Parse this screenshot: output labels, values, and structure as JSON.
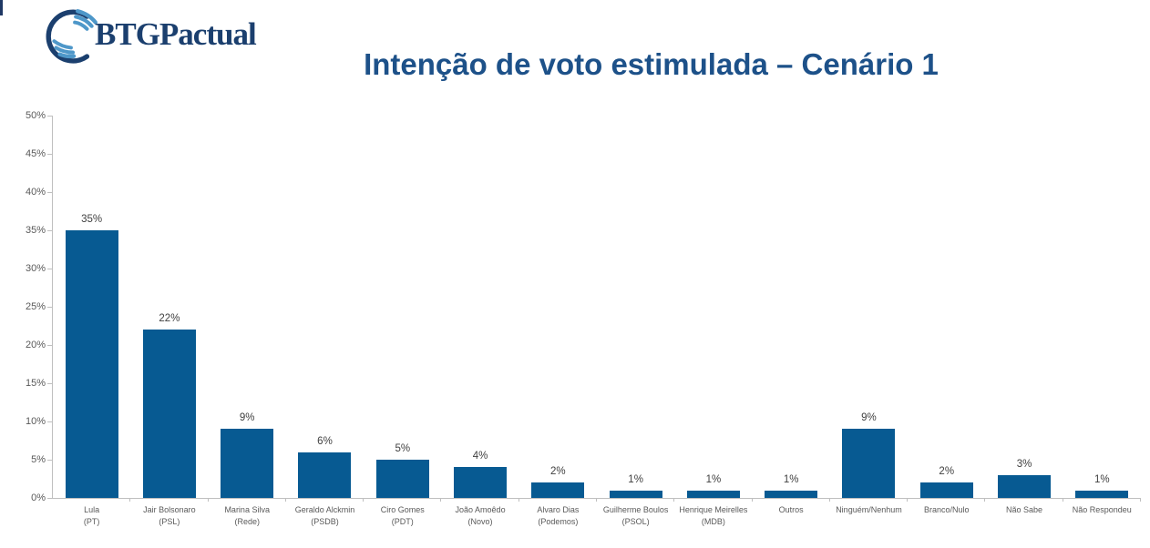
{
  "header": {
    "logo_text": "BTGPactual",
    "title": "Intenção de voto estimulada – Cenário 1"
  },
  "colors": {
    "bar": "#075A92",
    "title": "#1D5189",
    "logo_navy": "#1B3F6E",
    "logo_stripe": "#4E97C9",
    "axis": "#BFBFBF",
    "value_label": "#404040",
    "tick_label": "#595959"
  },
  "chart_data": {
    "type": "bar",
    "title": "Intenção de voto estimulada – Cenário 1",
    "categories": [
      "Lula (PT)",
      "Jair Bolsonaro (PSL)",
      "Marina Silva (Rede)",
      "Geraldo Alckmin (PSDB)",
      "Ciro Gomes (PDT)",
      "João Amoêdo (Novo)",
      "Alvaro Dias (Podemos)",
      "Guilherme Boulos (PSOL)",
      "Henrique Meirelles (MDB)",
      "Outros",
      "Ninguém/Nenhum",
      "Branco/Nulo",
      "Não Sabe",
      "Não Respondeu"
    ],
    "values": [
      35,
      22,
      9,
      6,
      5,
      4,
      2,
      1,
      1,
      1,
      9,
      2,
      3,
      1
    ],
    "items": [
      {
        "label": "Lula",
        "sublabel": "(PT)",
        "value": 35,
        "value_label": "35%"
      },
      {
        "label": "Jair Bolsonaro",
        "sublabel": "(PSL)",
        "value": 22,
        "value_label": "22%"
      },
      {
        "label": "Marina Silva",
        "sublabel": "(Rede)",
        "value": 9,
        "value_label": "9%"
      },
      {
        "label": "Geraldo Alckmin",
        "sublabel": "(PSDB)",
        "value": 6,
        "value_label": "6%"
      },
      {
        "label": "Ciro Gomes",
        "sublabel": "(PDT)",
        "value": 5,
        "value_label": "5%"
      },
      {
        "label": "João Amoêdo",
        "sublabel": "(Novo)",
        "value": 4,
        "value_label": "4%"
      },
      {
        "label": "Alvaro Dias",
        "sublabel": "(Podemos)",
        "value": 2,
        "value_label": "2%"
      },
      {
        "label": "Guilherme Boulos",
        "sublabel": "(PSOL)",
        "value": 1,
        "value_label": "1%"
      },
      {
        "label": "Henrique Meirelles",
        "sublabel": "(MDB)",
        "value": 1,
        "value_label": "1%"
      },
      {
        "label": "Outros",
        "sublabel": "",
        "value": 1,
        "value_label": "1%"
      },
      {
        "label": "Ninguém/Nenhum",
        "sublabel": "",
        "value": 9,
        "value_label": "9%"
      },
      {
        "label": "Branco/Nulo",
        "sublabel": "",
        "value": 2,
        "value_label": "2%"
      },
      {
        "label": "Não Sabe",
        "sublabel": "",
        "value": 3,
        "value_label": "3%"
      },
      {
        "label": "Não Respondeu",
        "sublabel": "",
        "value": 1,
        "value_label": "1%"
      }
    ],
    "xlabel": "",
    "ylabel": "",
    "ylim": [
      0,
      50
    ],
    "ytick_step": 5,
    "yticks": [
      "0%",
      "5%",
      "10%",
      "15%",
      "20%",
      "25%",
      "30%",
      "35%",
      "40%",
      "45%",
      "50%"
    ],
    "grid": false,
    "legend": "none"
  }
}
